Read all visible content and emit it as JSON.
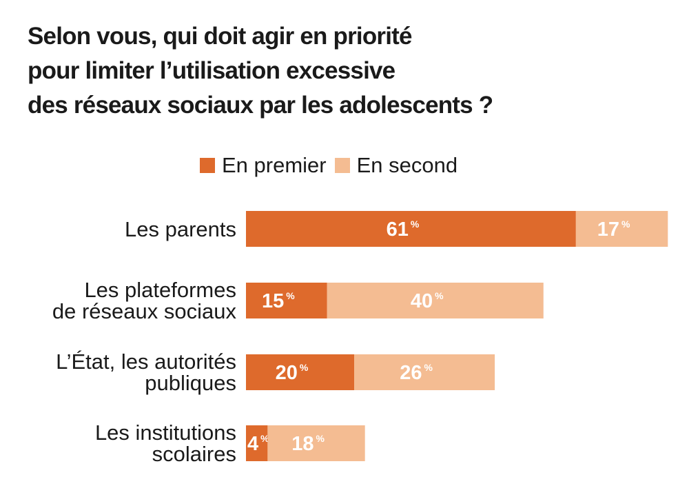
{
  "title": [
    "Selon vous, qui doit agir en priorité",
    "pour limiter l’utilisation excessive",
    "des  réseaux sociaux par les adolescents ?"
  ],
  "chart_data": {
    "type": "bar",
    "orientation": "horizontal",
    "stacked": true,
    "categories": [
      [
        "Les parents"
      ],
      [
        "Les plateformes",
        "de réseaux sociaux"
      ],
      [
        "L’État, les autorités",
        "publiques"
      ],
      [
        "Les institutions",
        "scolaires"
      ]
    ],
    "series": [
      {
        "name": "En premier",
        "color": "#de6a2c",
        "values": [
          61,
          15,
          20,
          4
        ]
      },
      {
        "name": "En second",
        "color": "#f4bc92",
        "values": [
          17,
          40,
          26,
          18
        ]
      }
    ],
    "unit": "%",
    "legend": "top",
    "grid": false
  }
}
